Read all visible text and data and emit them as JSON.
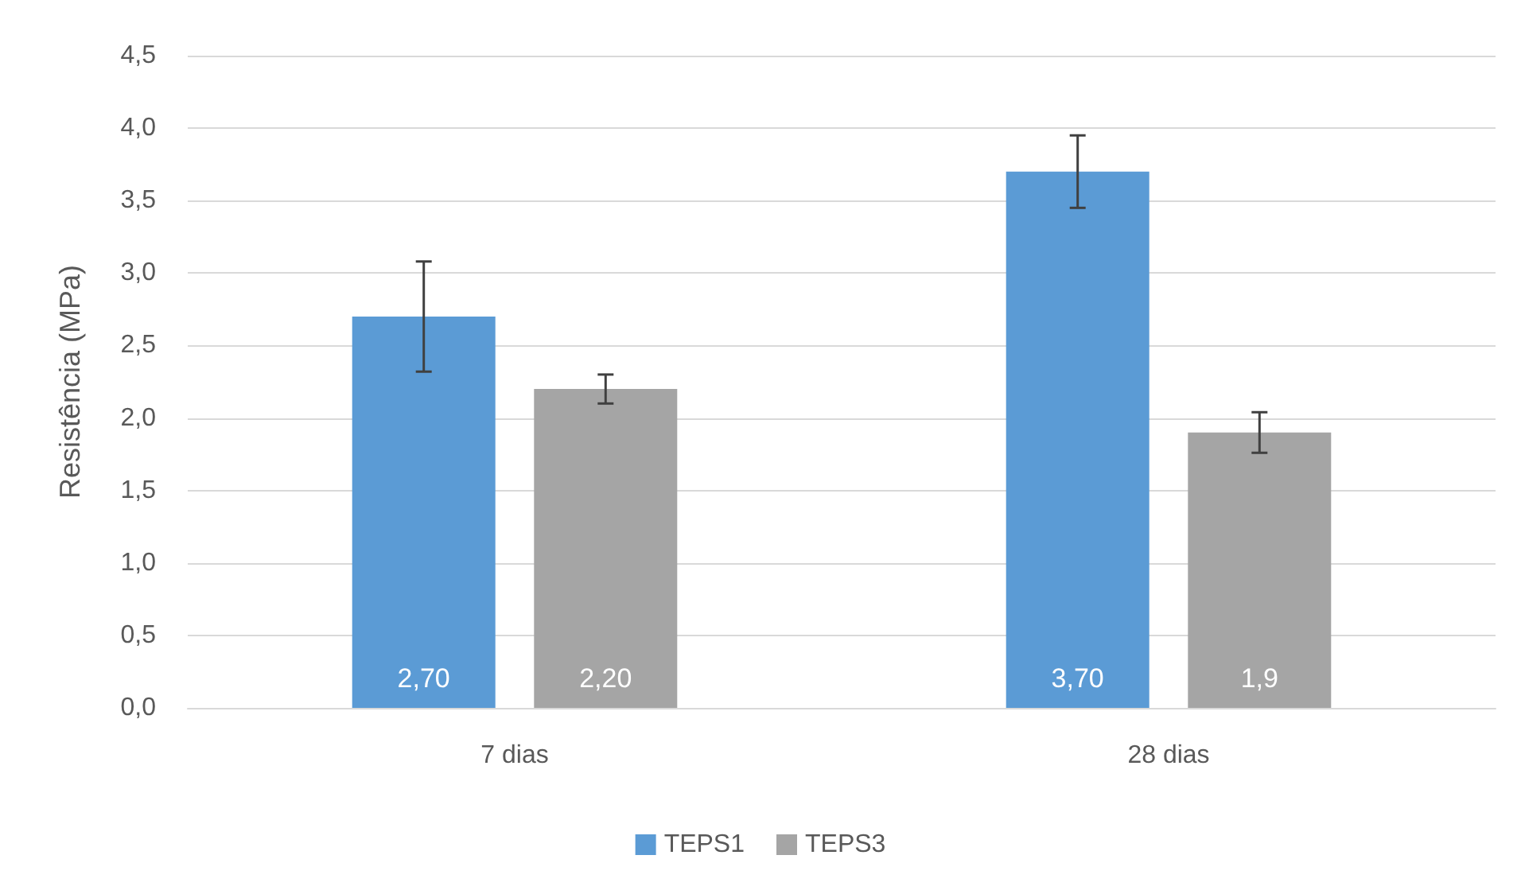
{
  "chart_data": {
    "type": "bar",
    "ylabel": "Resistência (MPa)",
    "categories": [
      "7 dias",
      "28 dias"
    ],
    "series": [
      {
        "name": "TEPS1",
        "color": "#5b9bd5",
        "values": [
          2.7,
          3.7
        ],
        "errors": [
          0.38,
          0.25
        ],
        "value_labels": [
          "2,70",
          "3,70"
        ]
      },
      {
        "name": "TEPS3",
        "color": "#a5a5a5",
        "values": [
          2.2,
          1.9
        ],
        "errors": [
          0.1,
          0.14
        ],
        "value_labels": [
          "2,20",
          "1,9"
        ]
      }
    ],
    "ylim": [
      0,
      4.5
    ],
    "yticks": [
      {
        "value": 0,
        "label": "0,0"
      },
      {
        "value": 0.5,
        "label": "0,5"
      },
      {
        "value": 1,
        "label": "1,0"
      },
      {
        "value": 1.5,
        "label": "1,5"
      },
      {
        "value": 2,
        "label": "2,0"
      },
      {
        "value": 2.5,
        "label": "2,5"
      },
      {
        "value": 3,
        "label": "3,0"
      },
      {
        "value": 3.5,
        "label": "3,5"
      },
      {
        "value": 4,
        "label": "4,0"
      },
      {
        "value": 4.5,
        "label": "4,5"
      }
    ],
    "grid": "y",
    "legend": "bottom"
  }
}
